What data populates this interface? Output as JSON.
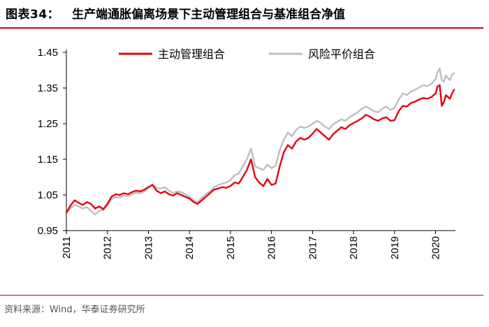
{
  "header": {
    "figure_label": "图表34：",
    "title": "生产端通胀偏离场景下主动管理组合与基准组合净值"
  },
  "source": "资料来源：Wind，华泰证券研究所",
  "colors": {
    "rule": "#d9000d",
    "active": "#e8000f",
    "benchmark": "#bfbfbf"
  },
  "chart_data": {
    "type": "line",
    "title": "生产端通胀偏离场景下主动管理组合与基准组合净值",
    "xlabel": "",
    "ylabel": "",
    "ylim": [
      0.95,
      1.45
    ],
    "yticks": [
      "0.95",
      "1.05",
      "1.15",
      "1.25",
      "1.35",
      "1.45"
    ],
    "xlim": [
      2011.0,
      2020.45
    ],
    "xticks": [
      "2011",
      "2012",
      "2013",
      "2014",
      "2015",
      "2016",
      "2017",
      "2018",
      "2019",
      "2020"
    ],
    "grid": false,
    "legend_position": "top",
    "series": [
      {
        "name": "主动管理组合",
        "color": "#e8000f",
        "x": [
          2011.0,
          2011.1,
          2011.2,
          2011.3,
          2011.4,
          2011.5,
          2011.6,
          2011.7,
          2011.8,
          2011.9,
          2012.0,
          2012.1,
          2012.2,
          2012.3,
          2012.4,
          2012.5,
          2012.6,
          2012.7,
          2012.8,
          2012.9,
          2013.0,
          2013.1,
          2013.2,
          2013.3,
          2013.4,
          2013.5,
          2013.6,
          2013.7,
          2013.8,
          2013.9,
          2014.0,
          2014.1,
          2014.2,
          2014.3,
          2014.4,
          2014.5,
          2014.6,
          2014.7,
          2014.8,
          2014.9,
          2015.0,
          2015.1,
          2015.2,
          2015.3,
          2015.4,
          2015.5,
          2015.6,
          2015.7,
          2015.8,
          2015.9,
          2016.0,
          2016.1,
          2016.2,
          2016.3,
          2016.4,
          2016.5,
          2016.6,
          2016.7,
          2016.8,
          2016.9,
          2017.0,
          2017.1,
          2017.2,
          2017.3,
          2017.4,
          2017.5,
          2017.6,
          2017.7,
          2017.8,
          2017.9,
          2018.0,
          2018.1,
          2018.2,
          2018.3,
          2018.4,
          2018.5,
          2018.6,
          2018.7,
          2018.8,
          2018.9,
          2019.0,
          2019.1,
          2019.2,
          2019.3,
          2019.4,
          2019.5,
          2019.6,
          2019.7,
          2019.8,
          2019.9,
          2020.0,
          2020.05,
          2020.1,
          2020.15,
          2020.2,
          2020.25,
          2020.3,
          2020.35,
          2020.4,
          2020.45
        ],
        "values": [
          1.0,
          1.02,
          1.035,
          1.028,
          1.022,
          1.03,
          1.025,
          1.012,
          1.018,
          1.01,
          1.025,
          1.045,
          1.052,
          1.05,
          1.055,
          1.052,
          1.058,
          1.062,
          1.06,
          1.065,
          1.072,
          1.078,
          1.062,
          1.055,
          1.06,
          1.052,
          1.048,
          1.055,
          1.05,
          1.045,
          1.04,
          1.03,
          1.025,
          1.035,
          1.045,
          1.055,
          1.065,
          1.068,
          1.072,
          1.07,
          1.075,
          1.085,
          1.082,
          1.1,
          1.12,
          1.15,
          1.1,
          1.085,
          1.075,
          1.095,
          1.078,
          1.082,
          1.13,
          1.17,
          1.19,
          1.18,
          1.2,
          1.21,
          1.205,
          1.21,
          1.222,
          1.235,
          1.225,
          1.215,
          1.205,
          1.22,
          1.23,
          1.24,
          1.235,
          1.245,
          1.252,
          1.258,
          1.265,
          1.275,
          1.27,
          1.262,
          1.258,
          1.265,
          1.268,
          1.258,
          1.26,
          1.285,
          1.3,
          1.298,
          1.308,
          1.312,
          1.318,
          1.322,
          1.32,
          1.325,
          1.335,
          1.355,
          1.358,
          1.3,
          1.31,
          1.33,
          1.325,
          1.32,
          1.335,
          1.345
        ]
      },
      {
        "name": "风险平价组合",
        "color": "#bfbfbf",
        "x": [
          2011.0,
          2011.1,
          2011.2,
          2011.3,
          2011.4,
          2011.5,
          2011.6,
          2011.7,
          2011.8,
          2011.9,
          2012.0,
          2012.1,
          2012.2,
          2012.3,
          2012.4,
          2012.5,
          2012.6,
          2012.7,
          2012.8,
          2012.9,
          2013.0,
          2013.1,
          2013.2,
          2013.3,
          2013.4,
          2013.5,
          2013.6,
          2013.7,
          2013.8,
          2013.9,
          2014.0,
          2014.1,
          2014.2,
          2014.3,
          2014.4,
          2014.5,
          2014.6,
          2014.7,
          2014.8,
          2014.9,
          2015.0,
          2015.1,
          2015.2,
          2015.3,
          2015.4,
          2015.5,
          2015.6,
          2015.7,
          2015.8,
          2015.9,
          2016.0,
          2016.1,
          2016.2,
          2016.3,
          2016.4,
          2016.5,
          2016.6,
          2016.7,
          2016.8,
          2016.9,
          2017.0,
          2017.1,
          2017.2,
          2017.3,
          2017.4,
          2017.5,
          2017.6,
          2017.7,
          2017.8,
          2017.9,
          2018.0,
          2018.1,
          2018.2,
          2018.3,
          2018.4,
          2018.5,
          2018.6,
          2018.7,
          2018.8,
          2018.9,
          2019.0,
          2019.1,
          2019.2,
          2019.3,
          2019.4,
          2019.5,
          2019.6,
          2019.7,
          2019.8,
          2019.9,
          2020.0,
          2020.05,
          2020.1,
          2020.15,
          2020.2,
          2020.25,
          2020.3,
          2020.35,
          2020.4,
          2020.45
        ],
        "values": [
          1.0,
          1.012,
          1.022,
          1.018,
          1.012,
          1.016,
          1.005,
          0.995,
          1.005,
          1.008,
          1.02,
          1.038,
          1.045,
          1.043,
          1.048,
          1.046,
          1.052,
          1.056,
          1.055,
          1.06,
          1.07,
          1.08,
          1.07,
          1.068,
          1.072,
          1.062,
          1.055,
          1.06,
          1.058,
          1.052,
          1.045,
          1.035,
          1.03,
          1.042,
          1.052,
          1.06,
          1.072,
          1.078,
          1.082,
          1.085,
          1.092,
          1.105,
          1.11,
          1.13,
          1.15,
          1.18,
          1.13,
          1.125,
          1.12,
          1.135,
          1.125,
          1.132,
          1.175,
          1.205,
          1.225,
          1.215,
          1.232,
          1.242,
          1.238,
          1.242,
          1.25,
          1.258,
          1.252,
          1.242,
          1.235,
          1.248,
          1.255,
          1.262,
          1.258,
          1.268,
          1.275,
          1.282,
          1.292,
          1.298,
          1.292,
          1.285,
          1.282,
          1.292,
          1.298,
          1.288,
          1.295,
          1.318,
          1.335,
          1.33,
          1.34,
          1.345,
          1.352,
          1.358,
          1.355,
          1.362,
          1.375,
          1.395,
          1.405,
          1.372,
          1.368,
          1.385,
          1.378,
          1.372,
          1.388,
          1.392
        ]
      }
    ]
  }
}
